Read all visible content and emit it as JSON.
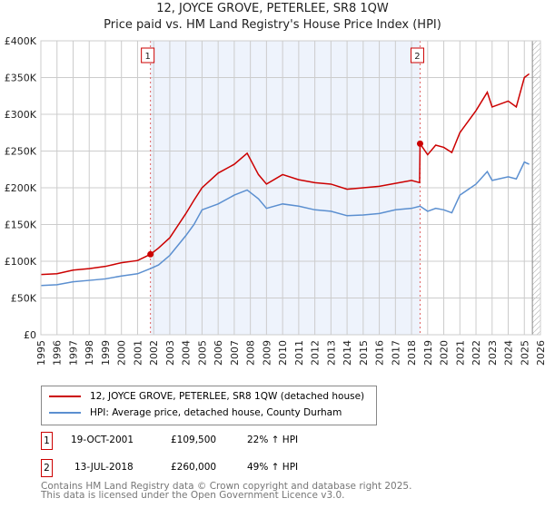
{
  "chart_data": {
    "type": "line",
    "title": "12, JOYCE GROVE, PETERLEE, SR8 1QW",
    "subtitle": "Price paid vs. HM Land Registry's House Price Index (HPI)",
    "xlim": [
      1995,
      2026
    ],
    "ylim": [
      0,
      400000
    ],
    "x_ticks": [
      "1995",
      "1996",
      "1997",
      "1998",
      "1999",
      "2000",
      "2001",
      "2002",
      "2003",
      "2004",
      "2005",
      "2006",
      "2007",
      "2008",
      "2009",
      "2010",
      "2011",
      "2012",
      "2013",
      "2014",
      "2015",
      "2016",
      "2017",
      "2018",
      "2019",
      "2020",
      "2021",
      "2022",
      "2023",
      "2024",
      "2025",
      "2026"
    ],
    "y_ticks": [
      {
        "v": 0,
        "l": "£0"
      },
      {
        "v": 50000,
        "l": "£50K"
      },
      {
        "v": 100000,
        "l": "£100K"
      },
      {
        "v": 150000,
        "l": "£150K"
      },
      {
        "v": 200000,
        "l": "£200K"
      },
      {
        "v": 250000,
        "l": "£250K"
      },
      {
        "v": 300000,
        "l": "£300K"
      },
      {
        "v": 350000,
        "l": "£350K"
      },
      {
        "v": 400000,
        "l": "£400K"
      }
    ],
    "grid": true,
    "series": [
      {
        "name": "12, JOYCE GROVE, PETERLEE, SR8 1QW (detached house)",
        "color": "#cc0000",
        "x": [
          1995,
          1996,
          1997,
          1998,
          1999,
          2000,
          2001,
          2001.8,
          2002.3,
          2003,
          2004,
          2004.5,
          2005,
          2006,
          2007,
          2007.8,
          2008.5,
          2009,
          2010,
          2011,
          2012,
          2013,
          2014,
          2015,
          2016,
          2017,
          2018,
          2018.5,
          2018.53,
          2019,
          2019.5,
          2020,
          2020.5,
          2021,
          2022,
          2022.7,
          2023,
          2024,
          2024.5,
          2025,
          2025.3
        ],
        "y": [
          82000,
          83000,
          88000,
          90000,
          93000,
          98000,
          101000,
          109500,
          118000,
          132000,
          165000,
          183000,
          200000,
          220000,
          232000,
          247000,
          218000,
          205000,
          218000,
          211000,
          207000,
          205000,
          198000,
          200000,
          202000,
          206000,
          210000,
          207000,
          260000,
          245000,
          258000,
          255000,
          248000,
          275000,
          305000,
          330000,
          310000,
          318000,
          310000,
          350000,
          355000
        ]
      },
      {
        "name": "HPI: Average price, detached house, County Durham",
        "color": "#5b8fd0",
        "x": [
          1995,
          1996,
          1997,
          1998,
          1999,
          2000,
          2001,
          2001.8,
          2002.3,
          2003,
          2004,
          2004.5,
          2005,
          2006,
          2007,
          2007.8,
          2008.5,
          2009,
          2010,
          2011,
          2012,
          2013,
          2014,
          2015,
          2016,
          2017,
          2018,
          2018.53,
          2019,
          2019.5,
          2020,
          2020.5,
          2021,
          2022,
          2022.7,
          2023,
          2024,
          2024.5,
          2025,
          2025.3
        ],
        "y": [
          67000,
          68000,
          72000,
          74000,
          76000,
          80000,
          83000,
          90000,
          95000,
          108000,
          135000,
          150000,
          170000,
          178000,
          190000,
          197000,
          185000,
          172000,
          178000,
          175000,
          170000,
          168000,
          162000,
          163000,
          165000,
          170000,
          172000,
          175000,
          168000,
          172000,
          170000,
          166000,
          190000,
          205000,
          222000,
          210000,
          215000,
          212000,
          235000,
          232000
        ]
      }
    ],
    "sales": [
      {
        "label": "1",
        "x": 2001.8,
        "y": 109500
      },
      {
        "label": "2",
        "x": 2018.53,
        "y": 260000
      }
    ],
    "data_end": 2025.5
  },
  "legend": {
    "red": "12, JOYCE GROVE, PETERLEE, SR8 1QW (detached house)",
    "blue": "HPI: Average price, detached house, County Durham"
  },
  "transactions": [
    {
      "num": "1",
      "date": "19-OCT-2001",
      "price": "£109,500",
      "hpi": "22% ↑ HPI"
    },
    {
      "num": "2",
      "date": "13-JUL-2018",
      "price": "£260,000",
      "hpi": "49% ↑ HPI"
    }
  ],
  "footer": [
    "Contains HM Land Registry data © Crown copyright and database right 2025.",
    "This data is licensed under the Open Government Licence v3.0."
  ]
}
